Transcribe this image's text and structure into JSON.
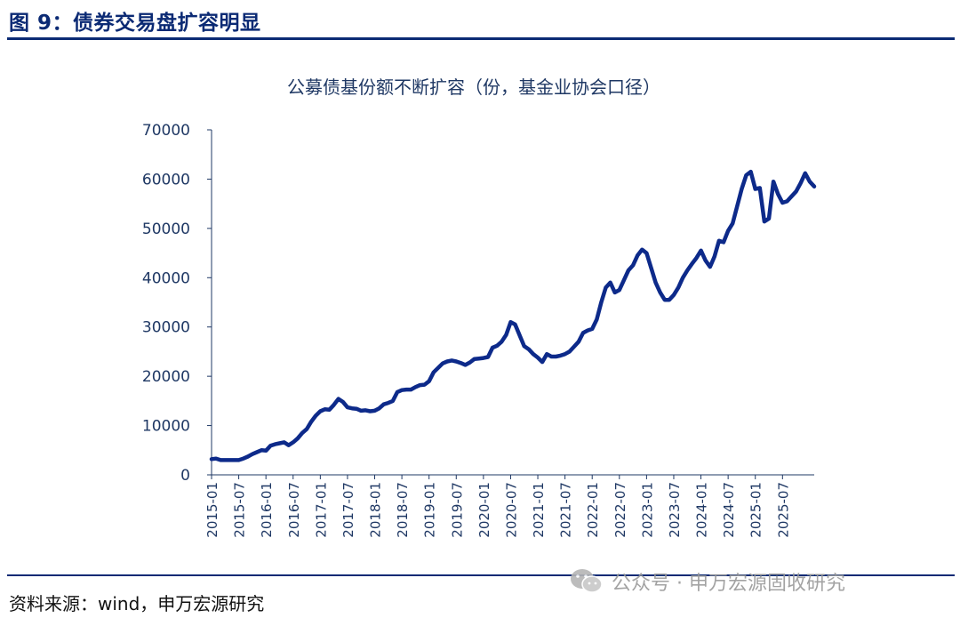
{
  "header": {
    "title": "图 9：债券交易盘扩容明显"
  },
  "footer": {
    "source": "资料来源：wind，申万宏源研究"
  },
  "watermark": {
    "text": "公众号 · 申万宏源固收研究",
    "icon": "wechat-icon"
  },
  "colors": {
    "line": "#0d2a8a",
    "axis": "#1f3864",
    "rule": "#0b2a74"
  },
  "chart_data": {
    "type": "line",
    "title": "公募债基份额不断扩容（份，基金业协会口径）",
    "xlabel": "",
    "ylabel": "",
    "ylim": [
      0,
      70000
    ],
    "yticks": [
      0,
      10000,
      20000,
      30000,
      40000,
      50000,
      60000,
      70000
    ],
    "x_tick_labels": [
      "2015-01",
      "2015-07",
      "2016-01",
      "2016-07",
      "2017-01",
      "2017-07",
      "2018-01",
      "2018-07",
      "2019-01",
      "2019-07",
      "2020-01",
      "2020-07",
      "2021-01",
      "2021-07",
      "2022-01",
      "2022-07",
      "2023-01",
      "2023-07",
      "2024-01",
      "2024-07",
      "2025-01",
      "2025-07"
    ],
    "series": [
      {
        "name": "公募债基份额",
        "start": "2015-01",
        "frequency": "monthly",
        "values": [
          3200,
          3300,
          3000,
          3000,
          3000,
          3000,
          3000,
          3300,
          3700,
          4200,
          4600,
          5000,
          4900,
          5900,
          6200,
          6400,
          6600,
          6000,
          6600,
          7400,
          8500,
          9300,
          10800,
          12000,
          12900,
          13300,
          13200,
          14200,
          15400,
          14800,
          13700,
          13500,
          13400,
          13000,
          13100,
          12900,
          13000,
          13500,
          14300,
          14600,
          15000,
          16800,
          17200,
          17300,
          17300,
          17800,
          18200,
          18300,
          19000,
          20800,
          21700,
          22600,
          23000,
          23200,
          23000,
          22700,
          22300,
          22800,
          23500,
          23600,
          23700,
          23900,
          25800,
          26200,
          27000,
          28400,
          31000,
          30500,
          28300,
          26100,
          25500,
          24500,
          23800,
          22900,
          24500,
          24000,
          24000,
          24200,
          24500,
          25000,
          26000,
          27000,
          28800,
          29300,
          29600,
          31500,
          35000,
          38000,
          39000,
          37000,
          37500,
          39500,
          41500,
          42500,
          44500,
          45700,
          45000,
          42000,
          39000,
          37000,
          35500,
          35500,
          36500,
          38000,
          40000,
          41500,
          42800,
          44000,
          45500,
          43500,
          42200,
          44300,
          47500,
          47200,
          49500,
          51000,
          54500,
          58000,
          60800,
          61500,
          58000,
          58200,
          51400,
          52000,
          59500,
          57000,
          55200,
          55500,
          56500,
          57500,
          59200,
          61200,
          59500,
          58500
        ]
      }
    ]
  }
}
